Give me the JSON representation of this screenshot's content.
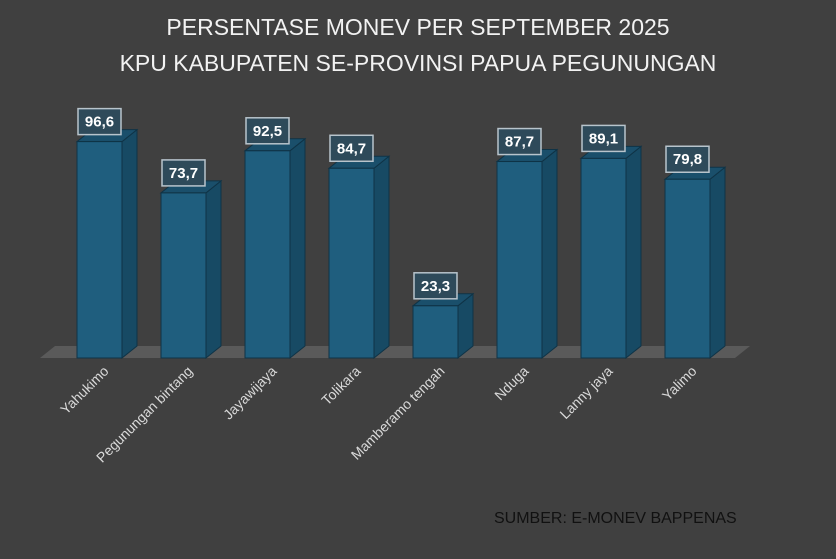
{
  "chart_data": {
    "type": "bar",
    "title": "PERSENTASE MONEV PER SEPTEMBER 2025",
    "subtitle": "KPU KABUPATEN SE-PROVINSI PAPUA PEGUNUNGAN",
    "categories": [
      "Yahukimo",
      "Pegunungan bintang",
      "Jayawijaya",
      "Tolikara",
      "Mamberamo tengah",
      "Nduga",
      "Lanny jaya",
      "Yalimo"
    ],
    "values": [
      96.6,
      73.7,
      92.5,
      84.7,
      23.3,
      87.7,
      89.1,
      79.8
    ],
    "value_labels": [
      "96,6",
      "73,7",
      "92,5",
      "84,7",
      "23,3",
      "87,7",
      "89,1",
      "79,8"
    ],
    "xlabel": "",
    "ylabel": "",
    "ylim": [
      0,
      100
    ],
    "grid": false,
    "annotation": "SUMBER: E-MONEV BAPPENAS",
    "colors": {
      "bar_front": "#1f5e7e",
      "bar_side": "#174a64",
      "bar_top": "#1a4f6b",
      "background": "#404040",
      "floor": "#5a5a5a"
    }
  }
}
